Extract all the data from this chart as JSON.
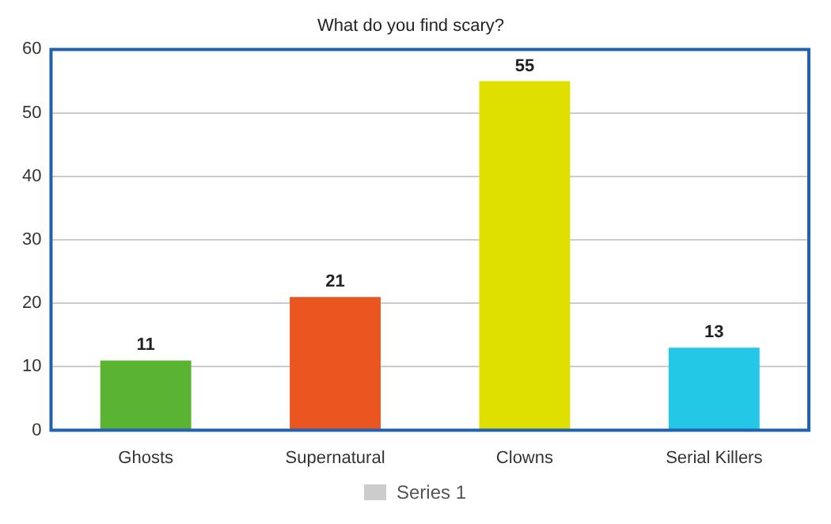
{
  "chart_data": {
    "type": "bar",
    "title": "What do you find scary?",
    "categories": [
      "Ghosts",
      "Supernatural",
      "Clowns",
      "Serial Killers"
    ],
    "series": [
      {
        "name": "Series 1",
        "color": "#cccccc",
        "values": [
          11,
          21,
          55,
          13
        ],
        "colors": [
          "#5ab432",
          "#ea5520",
          "#e0e000",
          "#22c8e6"
        ]
      }
    ],
    "ylim": [
      0,
      60
    ],
    "yticks": [
      0,
      10,
      20,
      30,
      40,
      50,
      60
    ],
    "grid": "y",
    "legend": "bottom",
    "data_labels": true
  }
}
